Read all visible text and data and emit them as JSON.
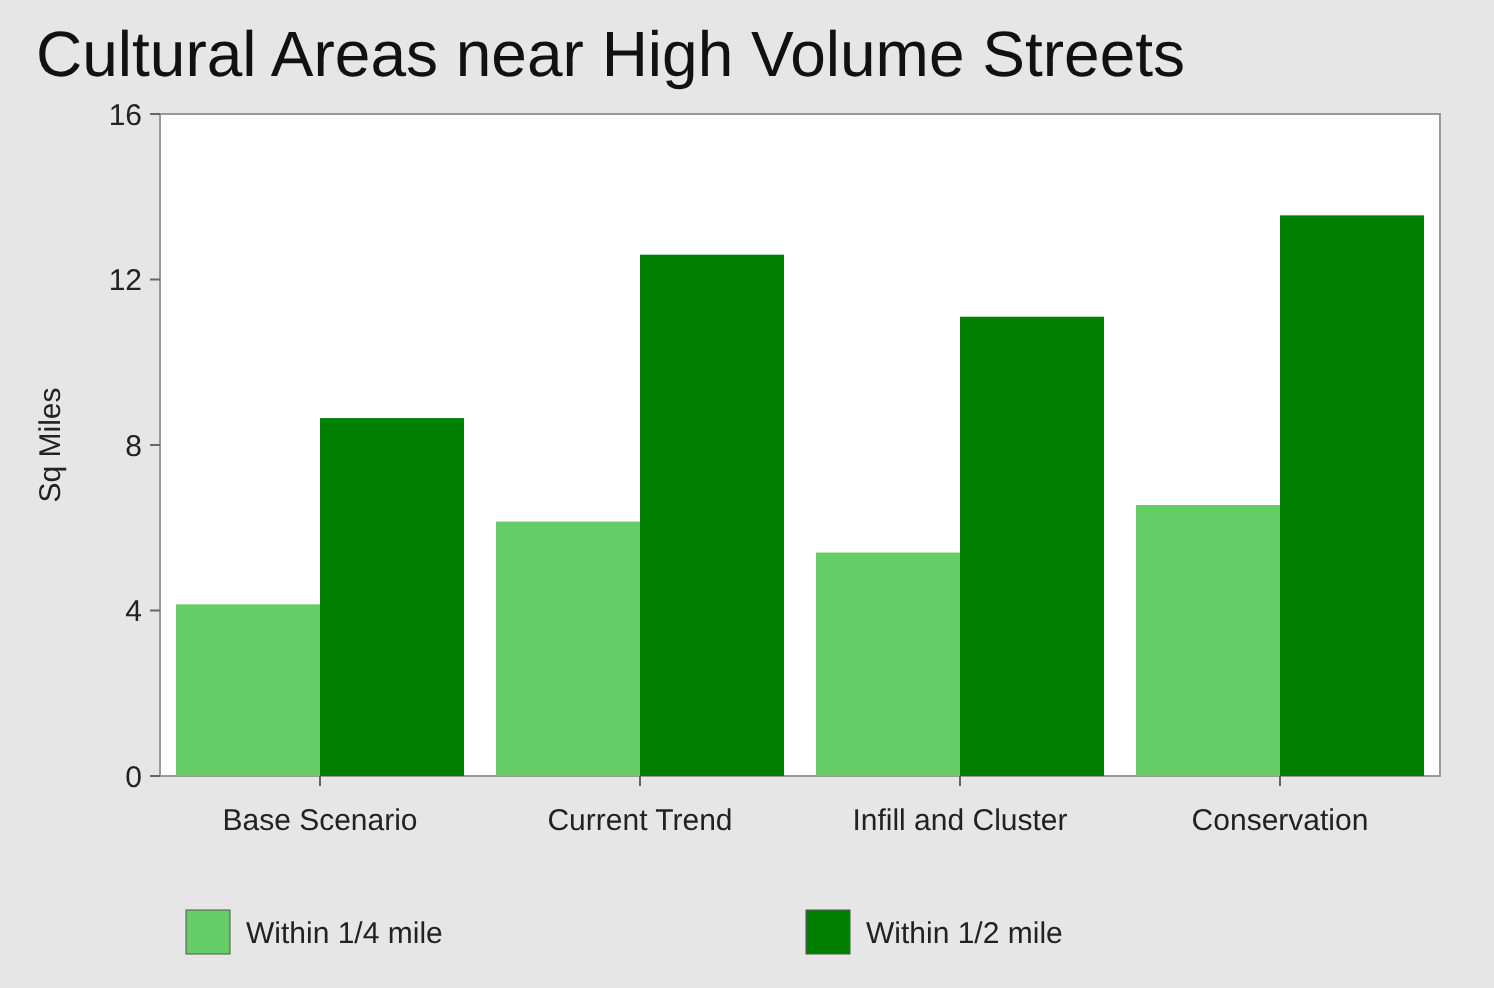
{
  "chart_data": {
    "type": "bar",
    "title": "Cultural Areas near High Volume Streets",
    "ylabel": "Sq Miles",
    "categories": [
      "Base Scenario",
      "Current Trend",
      "Infill and Cluster",
      "Conservation"
    ],
    "series": [
      {
        "name": "Within 1/4 mile",
        "color": "#66cc66",
        "values": [
          4.15,
          6.15,
          5.4,
          6.55
        ]
      },
      {
        "name": "Within 1/2 mile",
        "color": "#008000",
        "values": [
          8.65,
          12.6,
          11.1,
          13.55
        ]
      }
    ],
    "ylim": [
      0,
      16
    ],
    "yticks": [
      0,
      4,
      8,
      12,
      16
    ],
    "legend": "bottom"
  }
}
